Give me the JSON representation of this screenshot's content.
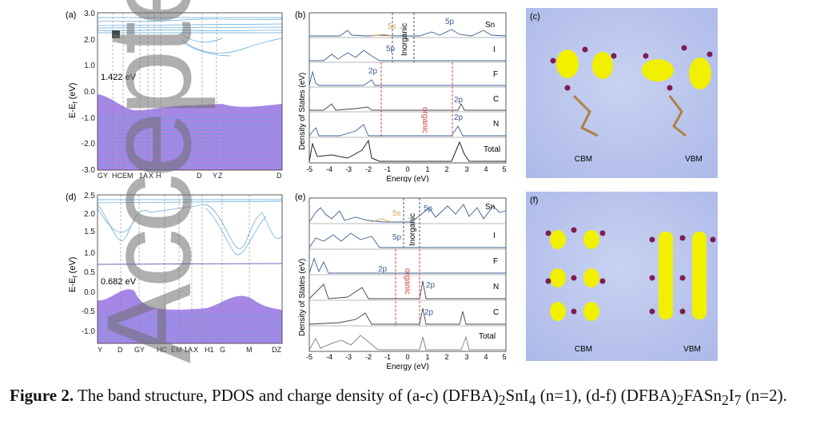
{
  "panels": {
    "a": {
      "label": "(a)",
      "ylabel": "E-E",
      "ylabel_sub": "f",
      "ylabel_unit": " (eV)",
      "yticks": [
        "3.0",
        "2.0",
        "1.0",
        "0.0",
        "-1.0",
        "-2.0",
        "-3.0"
      ],
      "xticks": [
        "GY",
        "HC",
        "EM",
        "1A",
        "X",
        "H",
        "D",
        "Y",
        "Z",
        "D"
      ],
      "gap": "1.422 eV"
    },
    "b": {
      "label": "(b)",
      "ylabel": "Density of States (eV)",
      "xlabel": "Energy (eV)",
      "xticks": [
        "-5",
        "-4",
        "-3",
        "-2",
        "-1",
        "0",
        "1",
        "2",
        "3",
        "4",
        "5"
      ],
      "rows": [
        "Sn",
        "I",
        "F",
        "C",
        "N",
        "Total"
      ],
      "ann_5s": "5s",
      "ann_5p_sn": "5p",
      "ann_5p_i": "5p",
      "ann_2p_f": "2p",
      "ann_2p_c": "2p",
      "ann_2p_n": "2p",
      "inorganic": "Inorganic",
      "organic": "organic"
    },
    "c": {
      "label": "(c)",
      "cbm": "CBM",
      "vbm": "VBM"
    },
    "d": {
      "label": "(d)",
      "ylabel": "E-E",
      "ylabel_sub": "f",
      "ylabel_unit": " (eV)",
      "yticks": [
        "2.5",
        "2.0",
        "1.5",
        "1.0",
        "0.5",
        "0.0",
        "-0.5",
        "-1.0"
      ],
      "xticks": [
        "Y",
        "D",
        "GY",
        "HC",
        "EM",
        "1A",
        "X",
        "H1",
        "G",
        "M",
        "DZ"
      ],
      "gap": "0.682 eV"
    },
    "e": {
      "label": "(e)",
      "ylabel": "Density of States (eV)",
      "xlabel": "Energy (eV)",
      "xticks": [
        "-5",
        "-4",
        "-3",
        "-2",
        "-1",
        "0",
        "1",
        "2",
        "3",
        "4",
        "5"
      ],
      "rows": [
        "Sn",
        "I",
        "F",
        "N",
        "C",
        "Total"
      ],
      "ann_5s": "5s",
      "ann_5p_sn": "5p",
      "ann_5p_i": "5p",
      "ann_2p_f": "2p",
      "ann_2p_n": "2p",
      "ann_2p_c": "2p",
      "inorganic": "Inorganic",
      "organic": "organic"
    },
    "f": {
      "label": "(f)",
      "cbm": "CBM",
      "vbm": "VBM"
    }
  },
  "caption": {
    "fig": "Figure 2.",
    "text1": " The band structure, PDOS and charge density of (a-c) (DFBA)",
    "s1": "2",
    "text2": "SnI",
    "s2": "4",
    "text3": " (n=1), (d-f) (DFBA)",
    "s3": "2",
    "text4": "FASn",
    "s4": "2",
    "text5": "I",
    "s5": "7",
    "text6": " (n=2)."
  },
  "watermark": "Accepted Article",
  "colors": {
    "band_fill": "#a787e6",
    "band_line": "#5aa6d8",
    "pdos_blue": "#3b5f91",
    "orange": "#d9a24a",
    "red_dash": "#d94040",
    "iso_yellow": "#f0f000",
    "bg_blue": "#c5cff0"
  }
}
